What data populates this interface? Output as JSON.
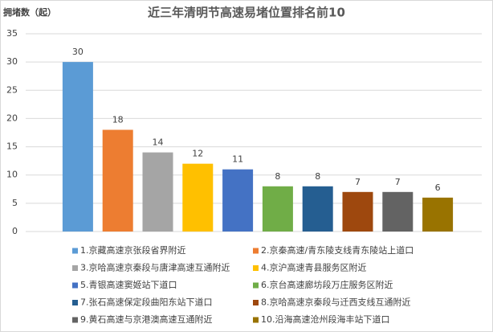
{
  "chart_data": {
    "type": "bar",
    "title": "近三年清明节高速易堵位置排名前10",
    "y_label": "拥堵数（起）",
    "categories": [
      "1.京藏高速京张段省界附近",
      "2.京秦高速/青东陵支线青东陵站上道口",
      "3.京哈高速京秦段与唐津高速互通附近",
      "4.京沪高速青县服务区附近",
      "5.青银高速窦姬站下道口",
      "6.京台高速廊坊段万庄服务区附近",
      "7.张石高速保定段曲阳东站下道口",
      "8.京哈高速京秦段与迁西支线互通附近",
      "9.黄石高速与京港澳高速互通附近",
      "10.沿海高速沧州段海丰站下道口"
    ],
    "values": [
      30,
      18,
      14,
      12,
      11,
      8,
      8,
      7,
      7,
      6
    ],
    "colors": [
      "#5b9bd5",
      "#ed7d31",
      "#a5a5a5",
      "#ffc000",
      "#4472c4",
      "#70ad47",
      "#255e91",
      "#9e480e",
      "#636363",
      "#997300"
    ],
    "ylim": [
      0,
      35
    ],
    "yticks": [
      0,
      5,
      10,
      15,
      20,
      25,
      30,
      35
    ],
    "grid": true
  }
}
